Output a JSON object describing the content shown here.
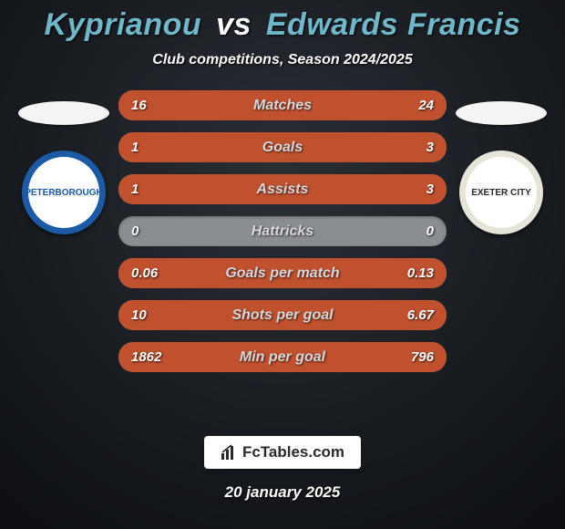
{
  "title": {
    "player1": "Kyprianou",
    "vs": "vs",
    "player2": "Edwards Francis",
    "player1_color": "#6fb7c9",
    "vs_color": "#ffffff",
    "player2_color": "#6fb7c9"
  },
  "subtitle": "Club competitions, Season 2024/2025",
  "flags": {
    "left_color": "#f4f4f4",
    "right_color": "#f4f4f4"
  },
  "crests": {
    "left": {
      "outer_color": "#1d5aa5",
      "inner_color": "#ffffff",
      "text": "PETERBOROUGH",
      "text_color": "#1d5aa5"
    },
    "right": {
      "outer_color": "#e6e3d8",
      "inner_color": "#ffffff",
      "text": "EXETER CITY",
      "text_color": "#2a2a2a"
    }
  },
  "stats": {
    "row_bg": "#8a8d92",
    "fill_left_color": "#c0512f",
    "fill_right_color": "#c0512f",
    "label_color": "#d6d8db",
    "val_color": "#ffffff",
    "rows": [
      {
        "label": "Matches",
        "left": "16",
        "right": "24",
        "left_pct": 40,
        "right_pct": 60
      },
      {
        "label": "Goals",
        "left": "1",
        "right": "3",
        "left_pct": 25,
        "right_pct": 75
      },
      {
        "label": "Assists",
        "left": "1",
        "right": "3",
        "left_pct": 25,
        "right_pct": 75
      },
      {
        "label": "Hattricks",
        "left": "0",
        "right": "0",
        "left_pct": 0,
        "right_pct": 0
      },
      {
        "label": "Goals per match",
        "left": "0.06",
        "right": "0.13",
        "left_pct": 32,
        "right_pct": 68
      },
      {
        "label": "Shots per goal",
        "left": "10",
        "right": "6.67",
        "left_pct": 60,
        "right_pct": 40
      },
      {
        "label": "Min per goal",
        "left": "1862",
        "right": "796",
        "left_pct": 70,
        "right_pct": 30
      }
    ]
  },
  "watermark": "FcTables.com",
  "date": "20 january 2025"
}
